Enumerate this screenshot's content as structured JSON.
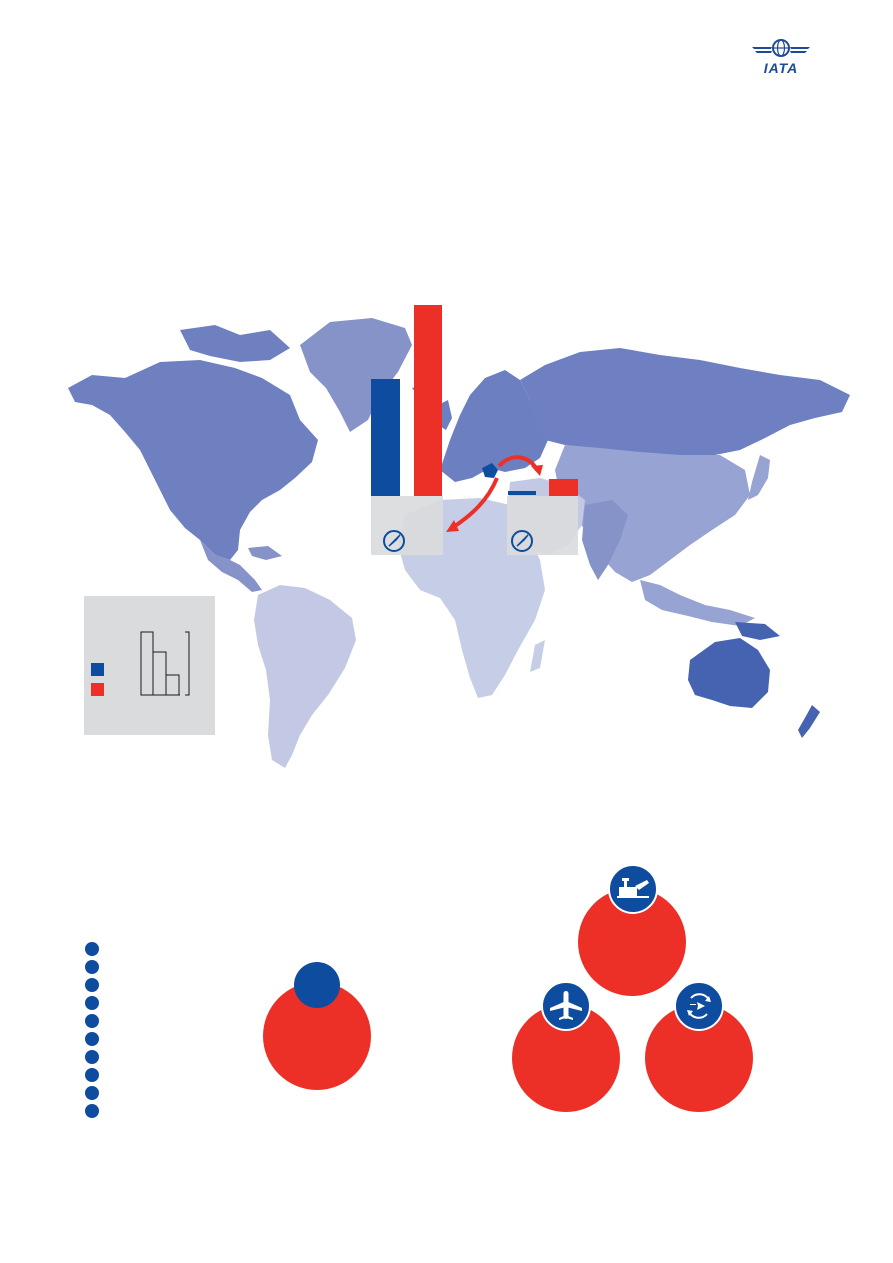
{
  "logo": {
    "text": "IATA",
    "icon": "globe-wings-icon",
    "color": "#1e4a9a"
  },
  "colors": {
    "blue": "#0d4c9f",
    "red": "#ec3027",
    "panel_gray": "#dadbdd",
    "map_north_america": "#6f80c0",
    "map_south_america": "#c3c9e5",
    "map_europe": "#6c7fc0",
    "map_russia": "#6e80c1",
    "map_asia": "#97a3d2",
    "map_africa": "#c6cde7",
    "map_middle_east": "#c3c9e5",
    "map_oceania": "#4563b0",
    "map_greenland": "#8593c8"
  },
  "icons": {
    "compass_1": "compass-icon",
    "compass_2": "compass-icon",
    "airport": "airport-terminal-icon",
    "airplane": "airplane-icon",
    "connecting_flights": "connecting-flights-icon"
  }
}
